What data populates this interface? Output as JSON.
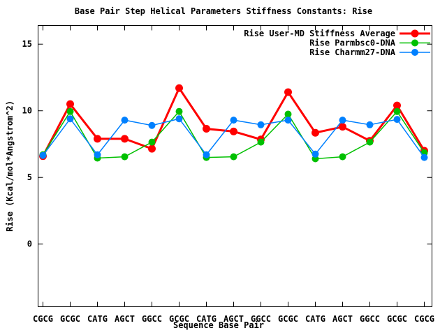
{
  "page": {
    "background": "#ffffff",
    "text_color": "#000000"
  },
  "chart_data": {
    "type": "line",
    "title": "Base Pair Step Helical Parameters Stiffness Constants: Rise",
    "xlabel": "Sequence Base Pair",
    "ylabel": "Rise (Kcal/mol*Angstrom^2)",
    "categories": [
      "CGCG",
      "GCGC",
      "CATG",
      "AGCT",
      "GGCC",
      "GCGC",
      "CATG",
      "AGCT",
      "GGCC",
      "GCGC",
      "CATG",
      "AGCT",
      "GGCC",
      "GCGC",
      "CGCG"
    ],
    "yticks": [
      0,
      5,
      10,
      15
    ],
    "ylim": [
      -4.7,
      16.4
    ],
    "grid": false,
    "legend_position": "top-right-inside",
    "series": [
      {
        "name": "Rise User-MD Stiffness Average",
        "color": "#ff0000",
        "values": [
          6.6,
          10.5,
          7.9,
          7.9,
          7.15,
          11.7,
          8.65,
          8.45,
          7.85,
          11.4,
          8.35,
          8.8,
          7.75,
          10.4,
          7.0
        ]
      },
      {
        "name": "Rise Parmbsc0-DNA",
        "color": "#00c000",
        "values": [
          6.7,
          9.95,
          6.45,
          6.55,
          7.65,
          9.95,
          6.5,
          6.55,
          7.65,
          9.75,
          6.4,
          6.55,
          7.65,
          9.95,
          6.85
        ]
      },
      {
        "name": "Rise Charmm27-DNA",
        "color": "#0080ff",
        "values": [
          6.65,
          9.4,
          6.7,
          9.3,
          8.9,
          9.4,
          6.7,
          9.3,
          8.95,
          9.3,
          6.75,
          9.3,
          8.95,
          9.35,
          6.5
        ]
      }
    ]
  }
}
